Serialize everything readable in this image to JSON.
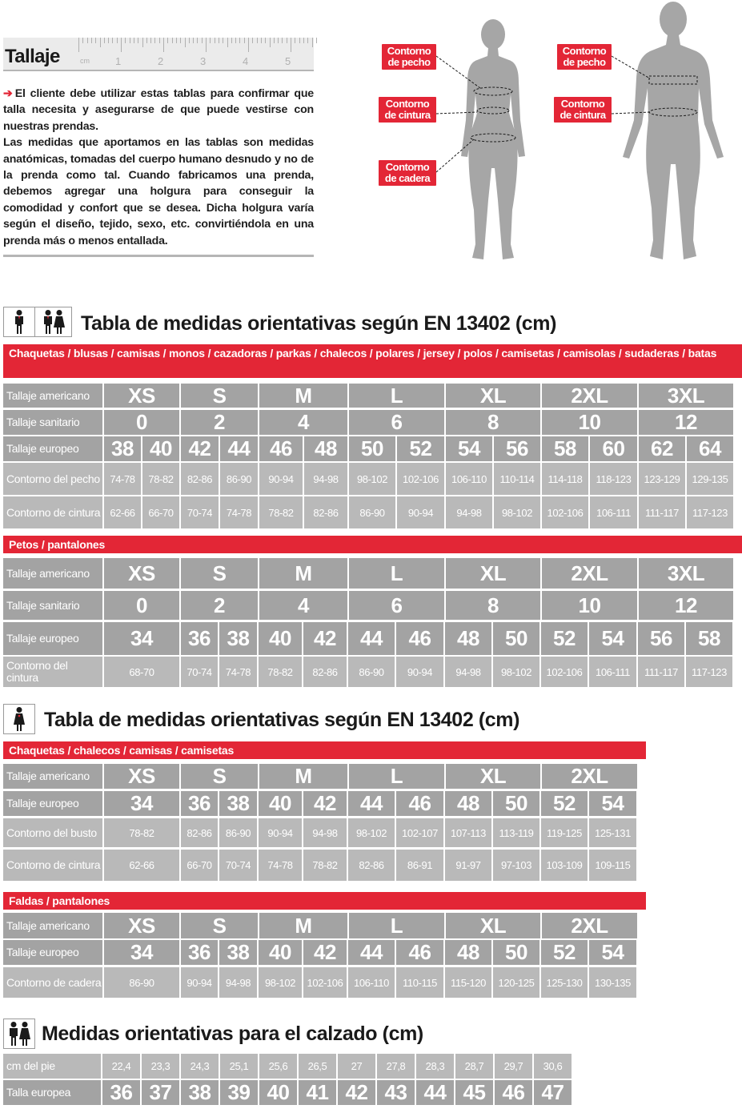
{
  "intro": {
    "title": "Tallaje",
    "ruler": {
      "unit": "cm",
      "numbers": [
        "1",
        "2",
        "3",
        "4",
        "5"
      ]
    },
    "paragraph_1": "El cliente debe utilizar estas tablas para confirmar que talla necesita y asegurarse de que puede vestirse con nuestras prendas.",
    "paragraph_2": "Las medidas que aportamos en las tablas son medidas anatómicas, tomadas del cuerpo humano desnudo y no de la prenda como tal. Cuando fabricamos una prenda, debemos agregar una holgura para conseguir la comodidad y confort que se desea. Dicha holgura varía según el diseño, tejido, sexo, etc. convirtiéndola en una prenda más o menos entallada."
  },
  "figures": {
    "female_callouts": [
      "Contorno de pecho",
      "Contorno de cintura",
      "Contorno de cadera"
    ],
    "male_callouts": [
      "Contorno de pecho",
      "Contorno de cintura"
    ]
  },
  "section_unisex": {
    "title": "Tabla de medidas orientativas según EN 13402 (cm)",
    "icons": [
      "man-icon",
      "man-woman-icon"
    ],
    "jackets": {
      "band": "Chaquetas / blusas / camisas / monos / cazadoras / parkas / chalecos / polares / jersey / polos / camisetas / camisolas / sudaderas / batas",
      "rows": {
        "american": {
          "label": "Tallaje americano",
          "values": [
            "XS",
            "S",
            "M",
            "L",
            "XL",
            "2XL",
            "3XL"
          ]
        },
        "sanitary": {
          "label": "Tallaje sanitario",
          "values": [
            "0",
            "2",
            "4",
            "6",
            "8",
            "10",
            "12"
          ]
        },
        "european": {
          "label": "Tallaje europeo",
          "values": [
            "38",
            "40",
            "42",
            "44",
            "46",
            "48",
            "50",
            "52",
            "54",
            "56",
            "58",
            "60",
            "62",
            "64"
          ]
        },
        "chest": {
          "label": "Contorno del pecho",
          "values": [
            "74-78",
            "78-82",
            "82-86",
            "86-90",
            "90-94",
            "94-98",
            "98-102",
            "102-106",
            "106-110",
            "110-114",
            "114-118",
            "118-123",
            "123-129",
            "129-135"
          ]
        },
        "waist": {
          "label": "Contorno de cintura",
          "values": [
            "62-66",
            "66-70",
            "70-74",
            "74-78",
            "78-82",
            "82-86",
            "86-90",
            "90-94",
            "94-98",
            "98-102",
            "102-106",
            "106-111",
            "111-117",
            "117-123"
          ]
        }
      }
    },
    "trousers": {
      "band": "Petos / pantalones",
      "rows": {
        "american": {
          "label": "Tallaje americano",
          "values": [
            "XS",
            "S",
            "M",
            "L",
            "XL",
            "2XL",
            "3XL"
          ]
        },
        "sanitary": {
          "label": "Tallaje sanitario",
          "values": [
            "0",
            "2",
            "4",
            "6",
            "8",
            "10",
            "12"
          ]
        },
        "european": {
          "label": "Tallaje europeo",
          "values": [
            "34",
            "36",
            "38",
            "40",
            "42",
            "44",
            "46",
            "48",
            "50",
            "52",
            "54",
            "56",
            "58"
          ]
        },
        "waist": {
          "label": "Contorno del cintura",
          "values": [
            "68-70",
            "70-74",
            "74-78",
            "78-82",
            "82-86",
            "86-90",
            "90-94",
            "94-98",
            "98-102",
            "102-106",
            "106-111",
            "111-117",
            "117-123"
          ]
        }
      }
    }
  },
  "section_women": {
    "title": "Tabla de medidas orientativas según EN 13402 (cm)",
    "icons": [
      "woman-icon"
    ],
    "jackets": {
      "band": "Chaquetas / chalecos / camisas / camisetas",
      "rows": {
        "american": {
          "label": "Tallaje americano",
          "values": [
            "XS",
            "S",
            "M",
            "L",
            "XL",
            "2XL"
          ]
        },
        "european": {
          "label": "Tallaje europeo",
          "values": [
            "34",
            "36",
            "38",
            "40",
            "42",
            "44",
            "46",
            "48",
            "50",
            "52",
            "54"
          ]
        },
        "bust": {
          "label": "Contorno del busto",
          "values": [
            "78-82",
            "82-86",
            "86-90",
            "90-94",
            "94-98",
            "98-102",
            "102-107",
            "107-113",
            "113-119",
            "119-125",
            "125-131"
          ]
        },
        "waist": {
          "label": "Contorno de cintura",
          "values": [
            "62-66",
            "66-70",
            "70-74",
            "74-78",
            "78-82",
            "82-86",
            "86-91",
            "91-97",
            "97-103",
            "103-109",
            "109-115"
          ]
        }
      }
    },
    "skirts": {
      "band": "Faldas / pantalones",
      "rows": {
        "american": {
          "label": "Tallaje americano",
          "values": [
            "XS",
            "S",
            "M",
            "L",
            "XL",
            "2XL"
          ]
        },
        "european": {
          "label": "Tallaje europeo",
          "values": [
            "34",
            "36",
            "38",
            "40",
            "42",
            "44",
            "46",
            "48",
            "50",
            "52",
            "54"
          ]
        },
        "hip": {
          "label": "Contorno de cadera",
          "values": [
            "86-90",
            "90-94",
            "94-98",
            "98-102",
            "102-106",
            "106-110",
            "110-115",
            "115-120",
            "120-125",
            "125-130",
            "130-135"
          ]
        }
      }
    }
  },
  "section_shoes": {
    "title": "Medidas orientativas para el calzado (cm)",
    "icons": [
      "man-woman-icon"
    ],
    "rows": {
      "foot": {
        "label": "cm del pie",
        "values": [
          "22,4",
          "23,3",
          "24,3",
          "25,1",
          "25,6",
          "26,5",
          "27",
          "27,8",
          "28,3",
          "28,7",
          "29,7",
          "30,6"
        ]
      },
      "european": {
        "label": "Talla europea",
        "values": [
          "36",
          "37",
          "38",
          "39",
          "40",
          "41",
          "42",
          "43",
          "44",
          "45",
          "46",
          "47"
        ]
      }
    }
  },
  "colors": {
    "accent_red": "#e32636",
    "cell_gray": "#a3a3a3",
    "cell_light_gray": "#b9b9b9",
    "text_dark": "#1e1e1e"
  }
}
